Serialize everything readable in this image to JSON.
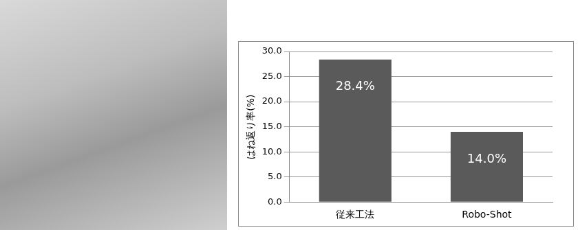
{
  "chart_data": {
    "type": "bar",
    "y_label": "はね返り率(%)",
    "categories": [
      "従来工法",
      "Robo-Shot"
    ],
    "values": [
      28.4,
      14.0
    ],
    "value_labels": [
      "28.4%",
      "14.0%"
    ],
    "color": "#5a5a5a",
    "ylim": [
      0,
      30
    ],
    "yticks": [
      {
        "value": 0,
        "label": "0.0"
      },
      {
        "value": 5,
        "label": "5.0"
      },
      {
        "value": 10,
        "label": "10.0"
      },
      {
        "value": 15,
        "label": "15.0"
      },
      {
        "value": 20,
        "label": "20.0"
      },
      {
        "value": 25,
        "label": "25.0"
      },
      {
        "value": 30,
        "label": "30.0"
      }
    ],
    "grid": true,
    "data_labels": true
  }
}
